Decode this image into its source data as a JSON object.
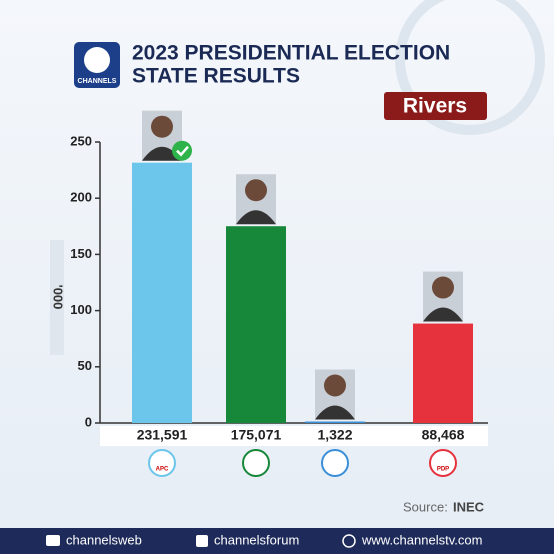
{
  "brand": {
    "logo_text": "CHANNELS"
  },
  "chart_data": {
    "type": "bar",
    "title": [
      "2023 PRESIDENTIAL ELECTION",
      "STATE RESULTS"
    ],
    "subtitle": "Rivers",
    "ylabel": "'000",
    "categories": [
      "APC",
      null,
      null,
      "PDP"
    ],
    "values": [
      231.591,
      175.071,
      1.322,
      88.468
    ],
    "value_labels": [
      "231,591",
      "175,071",
      "1,322",
      "88,468"
    ],
    "colors": [
      "#6cc5ea",
      "#17883a",
      "#3a8fd8",
      "#e6323d"
    ],
    "ylim": [
      0,
      250
    ],
    "yticks": [
      0,
      50,
      100,
      150,
      200,
      250
    ],
    "source_label": "Source:",
    "source": "INEC"
  },
  "footer": [
    "channelsweb",
    "channelsforum",
    "www.channelstv.com"
  ]
}
